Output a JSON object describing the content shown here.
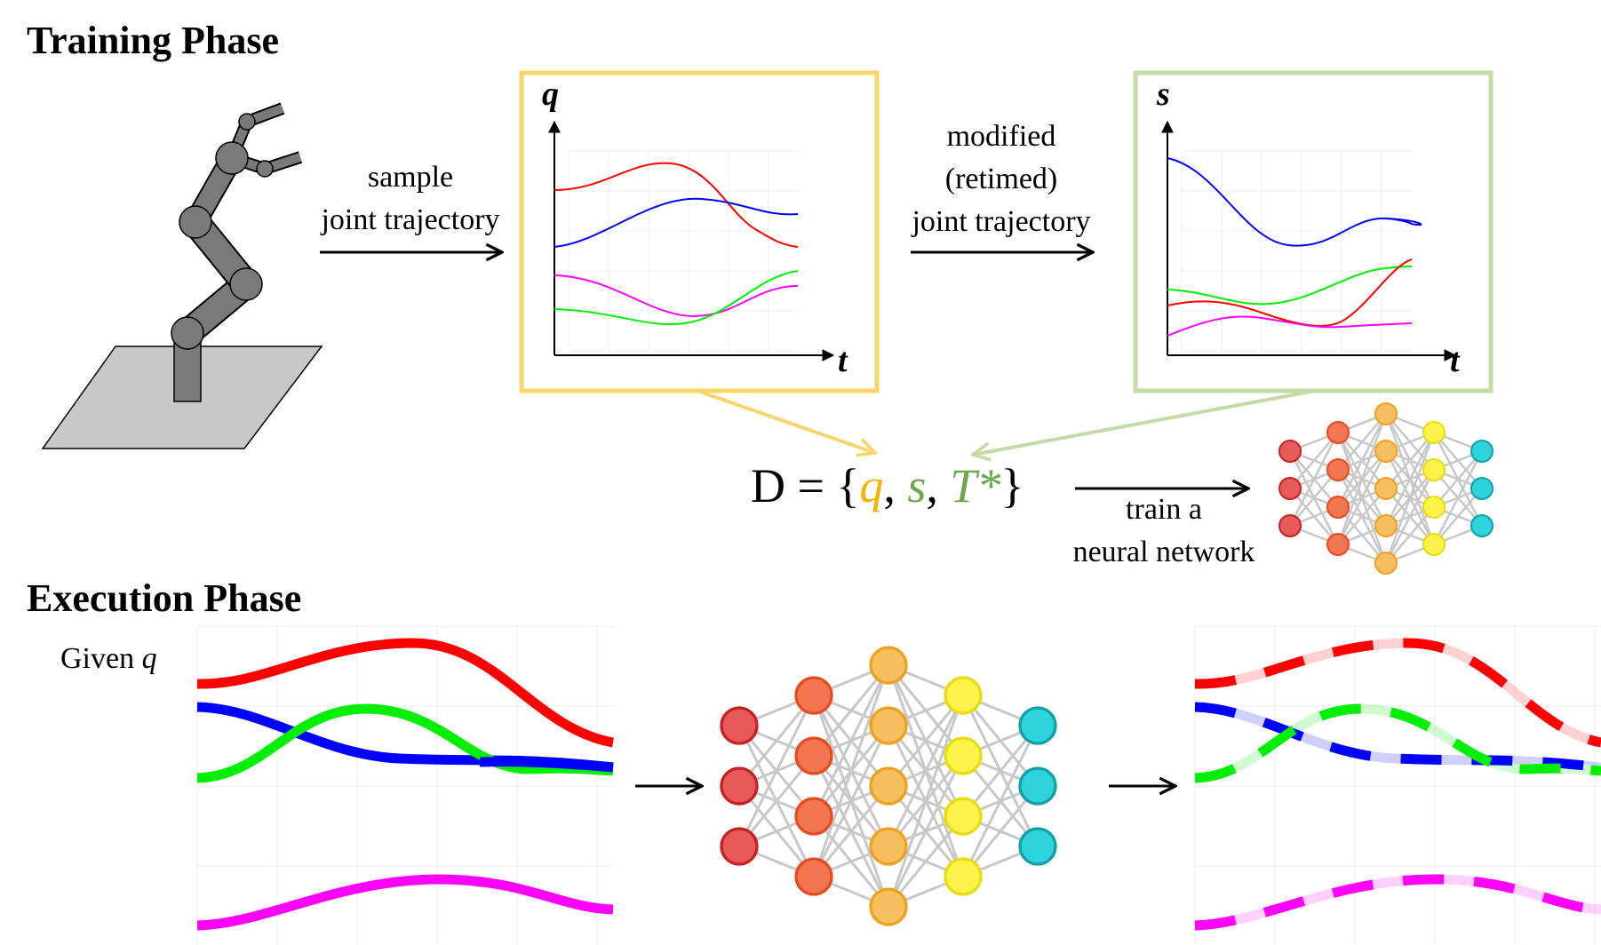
{
  "training": {
    "heading": "Training Phase",
    "sample_label": [
      "sample",
      "joint trajectory"
    ],
    "modified_label": [
      "modified",
      "(retimed)",
      "joint trajectory"
    ],
    "plot_q": {
      "ylabel": "q",
      "xlabel": "t",
      "frame_color": "#fad56b"
    },
    "plot_s": {
      "ylabel": "s",
      "xlabel": "t",
      "frame_color": "#c3dca5"
    },
    "dataset": {
      "prefix": "D = {",
      "q": "q",
      "comma1": ", ",
      "s": "s",
      "comma2": ", ",
      "T": "T*",
      "suffix": "}",
      "q_color": "#f5b400",
      "s_color": "#6aa84f",
      "T_color": "#6aa84f"
    },
    "train_label": [
      "train a",
      "neural network"
    ]
  },
  "execution": {
    "heading": "Execution Phase",
    "given_label": "Given",
    "given_var": "q"
  },
  "colors": {
    "red": "#ff0000",
    "blue": "#0000ff",
    "green": "#00ee00",
    "magenta": "#ff00ff",
    "nn_layer1": "#e85a5a",
    "nn_layer2": "#f2764f",
    "nn_layer3": "#f6c060",
    "nn_layer4": "#fbf34a",
    "nn_layer5": "#2ed3dc"
  }
}
